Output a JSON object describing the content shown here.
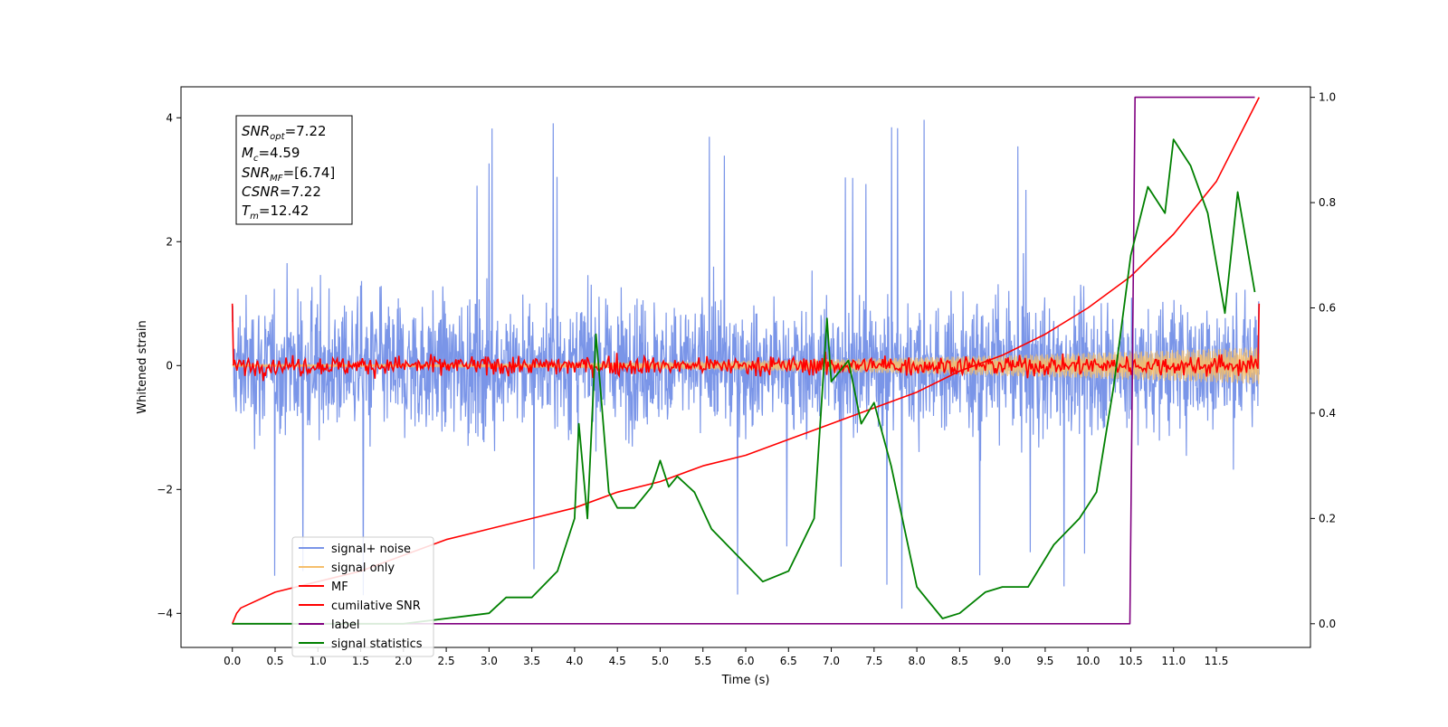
{
  "chart_data": {
    "type": "line",
    "xlabel": "Time (s)",
    "ylabel": "Whitened strain",
    "xlim": [
      -0.6,
      12.6
    ],
    "ylim": [
      -4.55,
      4.5
    ],
    "y2lim": [
      -0.045,
      1.02
    ],
    "x_ticks": [
      "0.0",
      "0.5",
      "1.0",
      "1.5",
      "2.0",
      "2.5",
      "3.0",
      "3.5",
      "4.0",
      "4.5",
      "5.0",
      "5.5",
      "6.0",
      "6.5",
      "7.0",
      "7.5",
      "8.0",
      "8.5",
      "9.0",
      "9.5",
      "10.0",
      "10.5",
      "11.0",
      "11.5"
    ],
    "y_ticks": [
      "4",
      "2",
      "0",
      "−2",
      "−4"
    ],
    "y2_ticks": [
      "1.0",
      "0.8",
      "0.6",
      "0.4",
      "0.2",
      "0.0"
    ],
    "legend_placement": "lower-left",
    "grid": false,
    "annotation": {
      "snr_opt": "=7.22",
      "mc": "=4.59",
      "snr_mf": "=[6.74]",
      "csnr": "=7.22",
      "tm": "=12.42"
    },
    "series": [
      {
        "name": "signal+ noise",
        "axis": "left",
        "color": "#7a95e8",
        "kind": "noise",
        "envelope": 2.0,
        "spike_max": 4.05,
        "x_range": [
          0,
          12
        ]
      },
      {
        "name": "signal only",
        "axis": "left",
        "color": "#f5bf6c",
        "kind": "chirp",
        "envelope_start": 0.02,
        "envelope_end": 0.3,
        "x_range": [
          0,
          12
        ]
      },
      {
        "name": "MF",
        "axis": "left",
        "color": "#ff0000",
        "kind": "noise",
        "envelope": 0.25,
        "start_value": 1.0,
        "end_value": 1.0,
        "x_range": [
          0,
          12
        ]
      },
      {
        "name": "cumilative SNR",
        "axis": "right",
        "color": "#ff0000",
        "x": [
          0.0,
          0.05,
          0.1,
          0.5,
          1.0,
          1.5,
          2.0,
          2.5,
          3.0,
          3.5,
          4.0,
          4.5,
          5.0,
          5.5,
          6.0,
          6.5,
          7.0,
          7.5,
          8.0,
          8.5,
          9.0,
          9.5,
          10.0,
          10.5,
          11.0,
          11.5,
          12.0
        ],
        "y": [
          0.0,
          0.02,
          0.03,
          0.06,
          0.08,
          0.1,
          0.13,
          0.16,
          0.18,
          0.2,
          0.22,
          0.25,
          0.27,
          0.3,
          0.32,
          0.35,
          0.38,
          0.41,
          0.44,
          0.48,
          0.51,
          0.55,
          0.6,
          0.66,
          0.74,
          0.84,
          1.0
        ]
      },
      {
        "name": "label",
        "axis": "right",
        "color": "#800080",
        "x": [
          0.0,
          10.49,
          10.55,
          11.95
        ],
        "y": [
          0.0,
          0.0,
          1.0,
          1.0
        ]
      },
      {
        "name": "signal statistics",
        "axis": "right",
        "color": "#008000",
        "x": [
          0.0,
          0.5,
          1.0,
          2.0,
          2.5,
          3.0,
          3.2,
          3.5,
          3.8,
          4.0,
          4.05,
          4.15,
          4.25,
          4.3,
          4.4,
          4.5,
          4.7,
          4.9,
          5.0,
          5.1,
          5.2,
          5.4,
          5.6,
          5.9,
          6.2,
          6.5,
          6.8,
          6.95,
          7.0,
          7.2,
          7.35,
          7.5,
          7.7,
          8.0,
          8.3,
          8.5,
          8.8,
          9.0,
          9.3,
          9.6,
          9.9,
          10.1,
          10.3,
          10.5,
          10.7,
          10.9,
          11.0,
          11.2,
          11.4,
          11.6,
          11.75,
          11.95
        ],
        "y": [
          0.0,
          0.0,
          0.0,
          0.0,
          0.01,
          0.02,
          0.05,
          0.05,
          0.1,
          0.2,
          0.38,
          0.2,
          0.55,
          0.45,
          0.25,
          0.22,
          0.22,
          0.26,
          0.31,
          0.26,
          0.28,
          0.25,
          0.18,
          0.13,
          0.08,
          0.1,
          0.2,
          0.58,
          0.46,
          0.5,
          0.38,
          0.42,
          0.3,
          0.07,
          0.01,
          0.02,
          0.06,
          0.07,
          0.07,
          0.15,
          0.2,
          0.25,
          0.45,
          0.7,
          0.83,
          0.78,
          0.92,
          0.87,
          0.78,
          0.59,
          0.82,
          0.63
        ]
      }
    ]
  }
}
